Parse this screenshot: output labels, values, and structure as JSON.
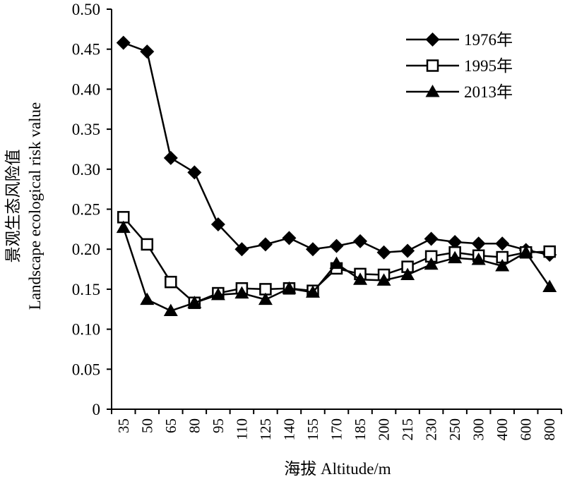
{
  "chart_data": {
    "type": "line",
    "xlabel": "海拔 Altitude/m",
    "ylabel_cn": "景观生态风险值",
    "ylabel_en": "Landscape ecological risk value",
    "categories": [
      "35",
      "50",
      "65",
      "80",
      "95",
      "110",
      "125",
      "140",
      "155",
      "170",
      "185",
      "200",
      "215",
      "230",
      "250",
      "300",
      "400",
      "600",
      "800"
    ],
    "ylim": [
      0,
      0.5
    ],
    "yticks": [
      "0",
      "0.05",
      "0.10",
      "0.15",
      "0.20",
      "0.25",
      "0.30",
      "0.35",
      "0.40",
      "0.45",
      "0.50"
    ],
    "grid": false,
    "legend_position": "top-right",
    "series": [
      {
        "name": "1976年",
        "marker": "diamond",
        "color": "#000000",
        "values": [
          0.458,
          0.447,
          0.314,
          0.296,
          0.231,
          0.2,
          0.206,
          0.214,
          0.2,
          0.204,
          0.21,
          0.196,
          0.198,
          0.213,
          0.209,
          0.207,
          0.207,
          0.199,
          0.193
        ]
      },
      {
        "name": "1995年",
        "marker": "open-square",
        "color": "#000000",
        "values": [
          0.24,
          0.206,
          0.159,
          0.133,
          0.145,
          0.151,
          0.15,
          0.151,
          0.148,
          0.176,
          0.169,
          0.168,
          0.178,
          0.191,
          0.196,
          0.192,
          0.19,
          0.196,
          0.197
        ]
      },
      {
        "name": "2013年",
        "marker": "triangle",
        "color": "#000000",
        "values": [
          0.227,
          0.137,
          0.123,
          0.133,
          0.143,
          0.145,
          0.137,
          0.151,
          0.146,
          0.182,
          0.162,
          0.161,
          0.168,
          0.181,
          0.189,
          0.187,
          0.179,
          0.196,
          0.153
        ]
      }
    ]
  }
}
